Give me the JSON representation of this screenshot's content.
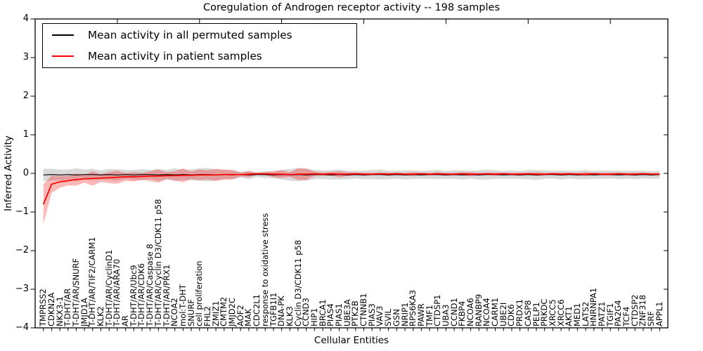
{
  "title": "Coregulation of Androgen receptor activity -- 198 samples",
  "legend": {
    "items": [
      {
        "label": "Mean activity in all permuted samples",
        "color": "#000000"
      },
      {
        "label": "Mean activity in patient samples",
        "color": "#ff0000"
      }
    ]
  },
  "chart_data": {
    "type": "line",
    "title": "Coregulation of Androgen receptor activity -- 198 samples",
    "xlabel": "Cellular Entities",
    "ylabel": "Inferred Activity",
    "ylim": [
      -4,
      4
    ],
    "yticks": [
      -4,
      -3,
      -2,
      -1,
      0,
      1,
      2,
      3,
      4
    ],
    "grid": false,
    "legend_position": "upper left",
    "categories": [
      "TMPRSS2",
      "CDKN2A",
      "NKX3-1",
      "T-DHT/AR",
      "T-DHT/AR/SNURF",
      "JMJD1A",
      "T-DHT/AR/TIF2/CARM1",
      "KLK2",
      "T-DHT/AR/CyclinD1",
      "T-DHT/AR/ARA70",
      "AR",
      "T-DHT/AR/Ubc9",
      "T-DHT/AR/CDK6",
      "T-DHT/AR/Caspase 8",
      "T-DHT/AR/Cyclin D3/CDK11 p58",
      "T-DHT/AR/PRX1",
      "NCOA2",
      "mol:T-DHT",
      "SNURF",
      "cell proliferation",
      "FHL2",
      "ZMIZ1",
      "CMTM2",
      "JMJD2C",
      "AOF2",
      "MAK",
      "CDC2L1",
      "response to oxidative stress",
      "TGFB1I1",
      "DNA-PK",
      "KLK3",
      "Cyclin D3/CDK11 p58",
      "CCND3",
      "HIP1",
      "BRCA1",
      "PIAS4",
      "PIAS1",
      "UBE3A",
      "PTK2B",
      "CTNNB1",
      "PIAS3",
      "VAV3",
      "SVIL",
      "GSN",
      "NRIP1",
      "RPS6KA3",
      "PAWR",
      "TMF1",
      "CTDSP1",
      "UBA3",
      "CCND1",
      "FKBP4",
      "NCOA6",
      "RANBP9",
      "NCOA4",
      "CARM1",
      "UBE2I",
      "CDK6",
      "PRDX1",
      "CASP8",
      "PELP1",
      "PRKDC",
      "XRCC5",
      "XRCC6",
      "AKT1",
      "MED1",
      "LATS2",
      "HNRNPA1",
      "PATZ1",
      "TGIF1",
      "PA2G4",
      "TCF4",
      "CTDSP2",
      "ZNF318",
      "SRF",
      "APPL1"
    ],
    "series": [
      {
        "name": "Mean activity in all permuted samples",
        "color": "#000000",
        "line_width": 1.1,
        "band_color": "rgba(128,128,128,0.30)",
        "values": [
          -0.04,
          -0.03,
          -0.04,
          -0.03,
          -0.04,
          -0.03,
          -0.03,
          -0.04,
          -0.03,
          -0.04,
          -0.03,
          -0.04,
          -0.03,
          -0.03,
          -0.04,
          -0.03,
          -0.04,
          -0.03,
          -0.04,
          -0.03,
          -0.03,
          -0.04,
          -0.03,
          -0.04,
          -0.03,
          -0.04,
          -0.03,
          -0.03,
          -0.04,
          -0.03,
          -0.04,
          -0.03,
          -0.04,
          -0.03,
          -0.03,
          -0.04,
          -0.03,
          -0.04,
          -0.03,
          -0.04,
          -0.03,
          -0.03,
          -0.04,
          -0.03,
          -0.04,
          -0.03,
          -0.04,
          -0.03,
          -0.03,
          -0.04,
          -0.03,
          -0.04,
          -0.03,
          -0.04,
          -0.03,
          -0.03,
          -0.04,
          -0.03,
          -0.04,
          -0.03,
          -0.04,
          -0.03,
          -0.03,
          -0.04,
          -0.03,
          -0.04,
          -0.03,
          -0.04,
          -0.03,
          -0.03,
          -0.04,
          -0.03,
          -0.04,
          -0.03,
          -0.04,
          -0.03
        ],
        "band_halfwidth": [
          0.16,
          0.15,
          0.14,
          0.13,
          0.17,
          0.13,
          0.15,
          0.12,
          0.14,
          0.15,
          0.12,
          0.13,
          0.14,
          0.12,
          0.16,
          0.12,
          0.17,
          0.13,
          0.14,
          0.16,
          0.17,
          0.14,
          0.12,
          0.11,
          0.07,
          0.11,
          0.06,
          0.09,
          0.08,
          0.13,
          0.15,
          0.17,
          0.15,
          0.12,
          0.11,
          0.12,
          0.13,
          0.11,
          0.1,
          0.11,
          0.12,
          0.13,
          0.11,
          0.1,
          0.12,
          0.11,
          0.1,
          0.11,
          0.12,
          0.1,
          0.11,
          0.12,
          0.1,
          0.12,
          0.13,
          0.11,
          0.1,
          0.11,
          0.1,
          0.12,
          0.13,
          0.11,
          0.1,
          0.12,
          0.1,
          0.11,
          0.12,
          0.1,
          0.11,
          0.1,
          0.11,
          0.1,
          0.11,
          0.1,
          0.1,
          0.1
        ]
      },
      {
        "name": "Mean activity in patient samples",
        "color": "#ff0000",
        "line_width": 1.7,
        "band_color": "rgba(255,0,0,0.28)",
        "values": [
          -0.8,
          -0.28,
          -0.22,
          -0.19,
          -0.16,
          -0.14,
          -0.13,
          -0.12,
          -0.11,
          -0.1,
          -0.09,
          -0.09,
          -0.08,
          -0.07,
          -0.07,
          -0.06,
          -0.06,
          -0.05,
          -0.05,
          -0.04,
          -0.04,
          -0.04,
          -0.03,
          -0.03,
          -0.03,
          -0.02,
          -0.01,
          -0.01,
          -0.02,
          -0.02,
          -0.03,
          -0.02,
          -0.02,
          -0.01,
          -0.02,
          -0.01,
          -0.02,
          -0.02,
          -0.01,
          -0.02,
          -0.02,
          -0.01,
          -0.02,
          -0.01,
          -0.02,
          -0.02,
          -0.01,
          -0.02,
          -0.01,
          -0.02,
          -0.02,
          -0.01,
          -0.02,
          -0.02,
          -0.01,
          -0.02,
          -0.01,
          -0.02,
          -0.02,
          -0.01,
          -0.02,
          -0.02,
          -0.01,
          -0.02,
          -0.01,
          -0.02,
          -0.02,
          -0.01,
          -0.02,
          -0.02,
          -0.01,
          -0.02,
          -0.02,
          -0.01,
          -0.02,
          -0.02
        ],
        "band_halfwidth": [
          0.52,
          0.22,
          0.15,
          0.12,
          0.16,
          0.1,
          0.19,
          0.1,
          0.14,
          0.17,
          0.1,
          0.12,
          0.09,
          0.13,
          0.17,
          0.09,
          0.12,
          0.18,
          0.1,
          0.14,
          0.12,
          0.16,
          0.13,
          0.13,
          0.05,
          0.08,
          0.02,
          0.04,
          0.08,
          0.1,
          0.06,
          0.15,
          0.15,
          0.06,
          0.04,
          0.05,
          0.08,
          0.05,
          0.03,
          0.04,
          0.03,
          0.03,
          0.04,
          0.03,
          0.03,
          0.05,
          0.03,
          0.03,
          0.04,
          0.03,
          0.03,
          0.04,
          0.05,
          0.03,
          0.03,
          0.04,
          0.03,
          0.03,
          0.04,
          0.03,
          0.05,
          0.03,
          0.03,
          0.04,
          0.03,
          0.03,
          0.05,
          0.03,
          0.03,
          0.04,
          0.03,
          0.03,
          0.04,
          0.03,
          0.03,
          0.03
        ]
      }
    ],
    "x_major_tick_positions": [
      10,
      20,
      30,
      40,
      50,
      60,
      70
    ]
  }
}
